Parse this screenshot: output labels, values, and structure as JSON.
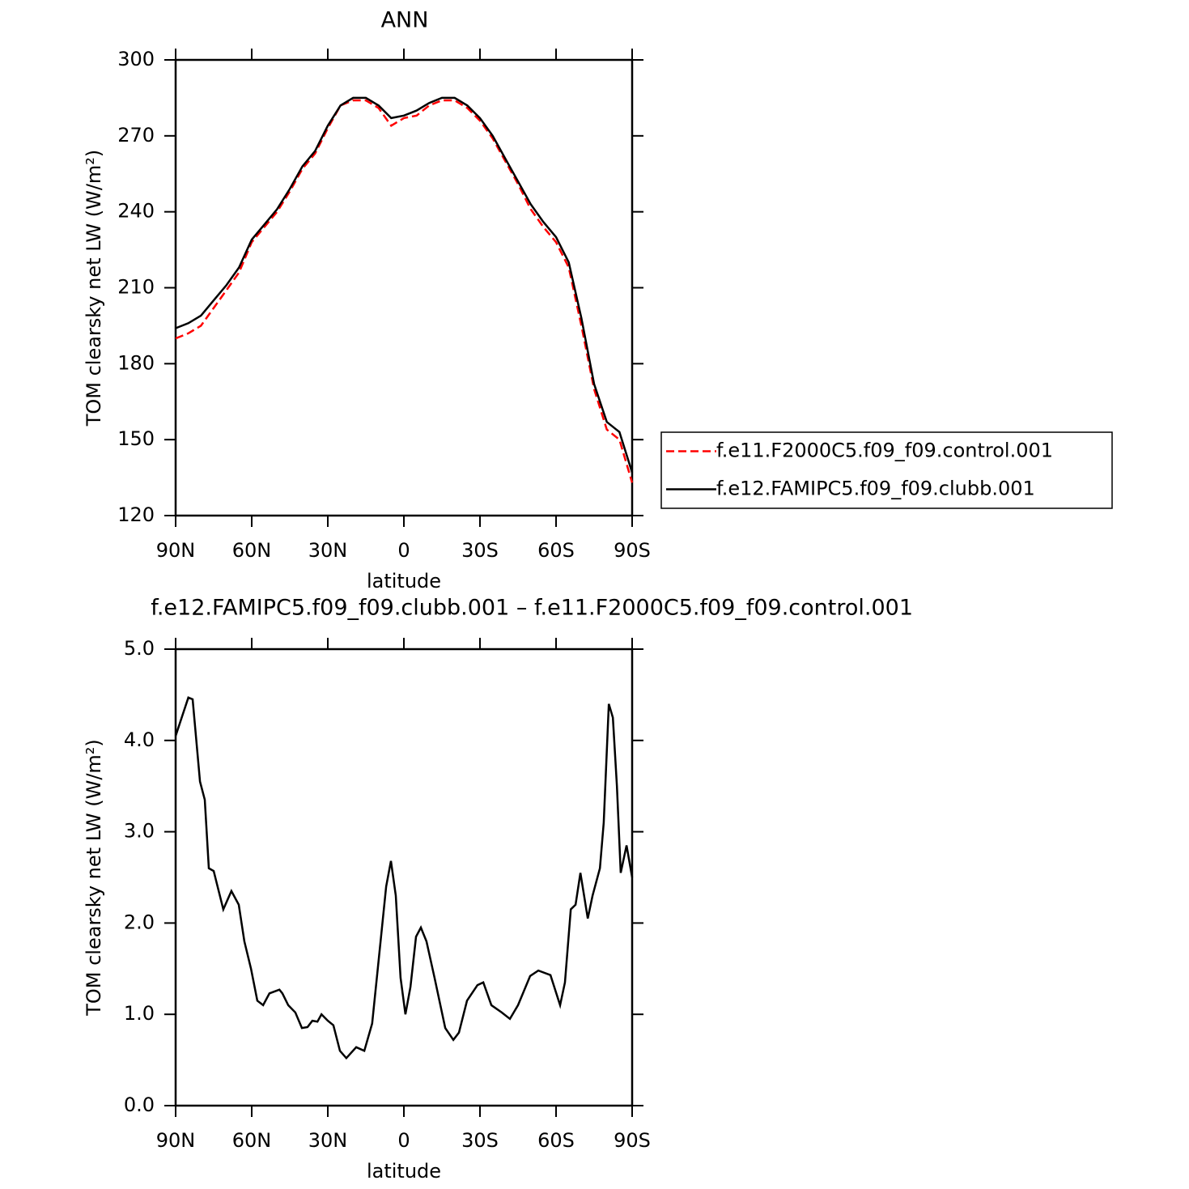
{
  "chart_data": [
    {
      "type": "line",
      "title": "ANN",
      "xlabel": "latitude",
      "ylabel": "TOM clearsky net LW (W/m²)",
      "x": [
        90,
        85,
        80,
        75,
        70,
        65,
        60,
        55,
        50,
        45,
        40,
        35,
        30,
        25,
        20,
        15,
        10,
        5,
        0,
        -5,
        -10,
        -15,
        -20,
        -25,
        -30,
        -35,
        -40,
        -45,
        -50,
        -55,
        -60,
        -65,
        -70,
        -75,
        -80,
        -85,
        -90
      ],
      "series": [
        {
          "name": "f.e11.F2000C5.f09_f09.control.001",
          "color": "#ff0000",
          "dash": true,
          "values": [
            190,
            192,
            195,
            202,
            209,
            216,
            228,
            234,
            240,
            248,
            257,
            263,
            273,
            282,
            284,
            284,
            281,
            274,
            277,
            278,
            282,
            284,
            284,
            281,
            276,
            269,
            260,
            251,
            241,
            234,
            228,
            218,
            195,
            170,
            154,
            150,
            133
          ]
        },
        {
          "name": "f.e12.FAMIPC5.f09_f09.clubb.001",
          "color": "#000000",
          "dash": false,
          "values": [
            194,
            196,
            199,
            205,
            211,
            218,
            229,
            235,
            241,
            249,
            258,
            264,
            274,
            282,
            285,
            285,
            282,
            277,
            278,
            280,
            283,
            285,
            285,
            282,
            277,
            270,
            261,
            252,
            243,
            236,
            230,
            220,
            198,
            172,
            157,
            153,
            137
          ]
        }
      ],
      "xlim": [
        90,
        -90
      ],
      "xticks": [
        {
          "value": 90,
          "label": "90N"
        },
        {
          "value": 60,
          "label": "60N"
        },
        {
          "value": 30,
          "label": "30N"
        },
        0,
        {
          "value": -30,
          "label": "30S"
        },
        {
          "value": -60,
          "label": "60S"
        },
        {
          "value": -90,
          "label": "90S"
        }
      ],
      "ylim": [
        120,
        300
      ],
      "yticks": [
        120,
        150,
        180,
        210,
        240,
        270,
        300
      ],
      "legend": "right"
    },
    {
      "type": "line",
      "title": "f.e12.FAMIPC5.f09_f09.clubb.001 – f.e11.F2000C5.f09_f09.control.001",
      "xlabel": "latitude",
      "ylabel": "TOM clearsky net LW (W/m²)",
      "x": [
        90,
        85,
        83.3,
        80.4,
        78.5,
        76.9,
        75,
        71.2,
        68,
        65.1,
        62.9,
        60.3,
        57.8,
        55.5,
        53,
        49.1,
        47.9,
        45.6,
        42.8,
        40.2,
        38,
        36.1,
        34.1,
        32.5,
        30,
        27.8,
        25.2,
        22.7,
        18.8,
        15.6,
        12.5,
        9.2,
        7,
        5.1,
        3.2,
        1.3,
        -0.6,
        -2.6,
        -4.8,
        -6.7,
        -8.9,
        -12.1,
        -16.3,
        -19.5,
        -21.7,
        -24.9,
        -29,
        -31.3,
        -34.5,
        -38.6,
        -41.8,
        -45,
        -49.8,
        -53,
        -57.8,
        -61.6,
        -63.5,
        -65.8,
        -67.7,
        -69.6,
        -72.5,
        -74.4,
        -77.3,
        -78.8,
        -80.8,
        -82.4,
        -84,
        -85.5,
        -87.8,
        -90
      ],
      "series": [
        {
          "color": "#000000",
          "values": [
            4.05,
            4.47,
            4.45,
            3.55,
            3.35,
            2.6,
            2.57,
            2.15,
            2.35,
            2.2,
            1.8,
            1.5,
            1.15,
            1.1,
            1.23,
            1.27,
            1.23,
            1.1,
            1.02,
            0.85,
            0.86,
            0.93,
            0.92,
            1.0,
            0.93,
            0.88,
            0.6,
            0.52,
            0.64,
            0.6,
            0.9,
            1.8,
            2.4,
            2.68,
            2.3,
            1.4,
            1.0,
            1.3,
            1.85,
            1.95,
            1.8,
            1.4,
            0.85,
            0.72,
            0.8,
            1.15,
            1.32,
            1.35,
            1.1,
            1.02,
            0.95,
            1.1,
            1.42,
            1.48,
            1.43,
            1.1,
            1.35,
            2.15,
            2.2,
            2.55,
            2.05,
            2.3,
            2.6,
            3.1,
            4.4,
            4.25,
            3.5,
            2.55,
            2.85,
            2.5
          ]
        }
      ],
      "xlim": [
        90,
        -90
      ],
      "xticks": [
        {
          "value": 90,
          "label": "90N"
        },
        {
          "value": 60,
          "label": "60N"
        },
        {
          "value": 30,
          "label": "30N"
        },
        0,
        {
          "value": -30,
          "label": "30S"
        },
        {
          "value": -60,
          "label": "60S"
        },
        {
          "value": -90,
          "label": "90S"
        }
      ],
      "ylim": [
        0,
        5
      ],
      "yticks": [
        {
          "value": 0,
          "label": "0.0"
        },
        {
          "value": 1,
          "label": "1.0"
        },
        {
          "value": 2,
          "label": "2.0"
        },
        {
          "value": 3,
          "label": "3.0"
        },
        {
          "value": 4,
          "label": "4.0"
        },
        {
          "value": 5,
          "label": "5.0"
        }
      ]
    }
  ]
}
